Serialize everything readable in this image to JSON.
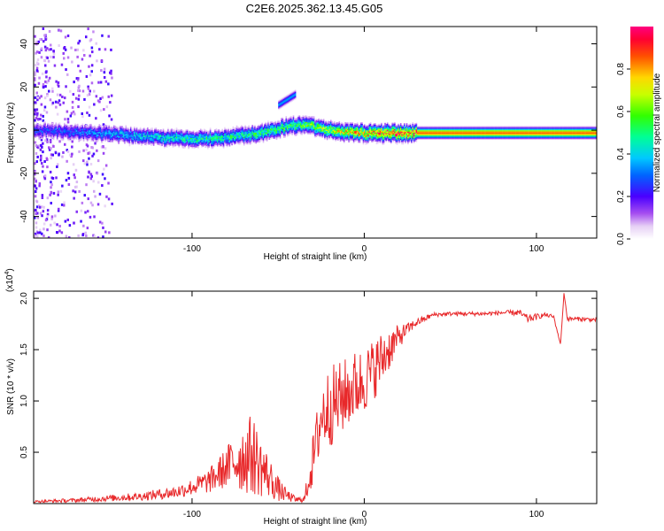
{
  "title": "C2E6.2025.362.13.45.G05",
  "colors": {
    "frame": "#000000",
    "snr_line": "#e8282a",
    "background": "#ffffff"
  },
  "chart_data": [
    {
      "type": "heatmap",
      "name": "spectrogram",
      "xlabel": "Height of straight line (km)",
      "ylabel": "Frequency (Hz)",
      "xlim": [
        -192,
        135
      ],
      "ylim": [
        -50,
        48
      ],
      "x_ticks": [
        -100,
        0,
        100
      ],
      "x_tick_labels": [
        "-100",
        "0",
        "100"
      ],
      "y_ticks": [
        -40,
        -20,
        0,
        20,
        40
      ],
      "y_tick_labels": [
        "-40",
        "-20",
        "0",
        "20",
        "40"
      ],
      "colorbar": {
        "label": "Normalized spectral amplitude",
        "range": [
          0,
          1
        ],
        "ticks": [
          0.0,
          0.2,
          0.4,
          0.6,
          0.8
        ],
        "tick_labels": [
          "0.0",
          "0.2",
          "0.4",
          "0.6",
          "0.8"
        ]
      },
      "ridge": {
        "x": [
          -185,
          -160,
          -140,
          -120,
          -100,
          -80,
          -60,
          -45,
          -35,
          -25,
          -10,
          0,
          10,
          25,
          40,
          60,
          80,
          100,
          120,
          135
        ],
        "freq": [
          0,
          -1,
          -2,
          -3,
          -4,
          -3,
          -1,
          2,
          3,
          1,
          -1,
          -1,
          -1,
          -1,
          -1,
          -1,
          -1,
          -1,
          -1,
          -1
        ],
        "amplitude": [
          0.25,
          0.3,
          0.35,
          0.4,
          0.45,
          0.45,
          0.5,
          0.5,
          0.55,
          0.6,
          0.7,
          0.75,
          0.8,
          0.85,
          0.85,
          0.85,
          0.85,
          0.85,
          0.85,
          0.85
        ]
      },
      "secondary_feature": {
        "x": [
          -50,
          -40
        ],
        "freq": [
          12,
          17
        ],
        "amplitude": 0.35
      }
    },
    {
      "type": "line",
      "name": "snr",
      "xlabel": "Height of straight line (km)",
      "ylabel": "SNR (10 * v/v)",
      "scale_label": "(x10",
      "scale_exponent": "4",
      "xlim": [
        -192,
        135
      ],
      "ylim": [
        0,
        2.07
      ],
      "x_ticks": [
        -100,
        0,
        100
      ],
      "x_tick_labels": [
        "-100",
        "0",
        "100"
      ],
      "y_ticks": [
        0.5,
        1.0,
        1.5,
        2.0
      ],
      "y_tick_labels": [
        "0.5",
        "1.0",
        "1.5",
        "2.0"
      ],
      "series": [
        {
          "name": "SNR",
          "x": [
            -192,
            -170,
            -150,
            -130,
            -110,
            -100,
            -90,
            -80,
            -75,
            -70,
            -65,
            -60,
            -55,
            -50,
            -45,
            -40,
            -35,
            -30,
            -25,
            -20,
            -15,
            -10,
            -5,
            0,
            5,
            10,
            15,
            20,
            25,
            30,
            35,
            40,
            50,
            60,
            70,
            80,
            90,
            95,
            100,
            105,
            110,
            114,
            116,
            118,
            125,
            135
          ],
          "y": [
            0.02,
            0.03,
            0.05,
            0.07,
            0.11,
            0.16,
            0.22,
            0.35,
            0.42,
            0.45,
            0.48,
            0.36,
            0.25,
            0.14,
            0.08,
            0.04,
            0.03,
            0.4,
            0.85,
            0.95,
            1.0,
            1.08,
            1.15,
            1.2,
            1.3,
            1.4,
            1.52,
            1.62,
            1.7,
            1.76,
            1.8,
            1.84,
            1.85,
            1.85,
            1.85,
            1.86,
            1.86,
            1.8,
            1.82,
            1.84,
            1.82,
            1.55,
            2.05,
            1.8,
            1.8,
            1.79
          ],
          "noise": [
            0.01,
            0.02,
            0.03,
            0.04,
            0.06,
            0.08,
            0.12,
            0.2,
            0.3,
            0.35,
            0.4,
            0.3,
            0.2,
            0.12,
            0.06,
            0.03,
            0.03,
            0.25,
            0.35,
            0.4,
            0.38,
            0.35,
            0.35,
            0.32,
            0.3,
            0.28,
            0.2,
            0.12,
            0.06,
            0.04,
            0.03,
            0.02,
            0.02,
            0.02,
            0.02,
            0.02,
            0.03,
            0.04,
            0.03,
            0.02,
            0.02,
            0.0,
            0.0,
            0.02,
            0.02,
            0.02
          ]
        }
      ]
    }
  ]
}
